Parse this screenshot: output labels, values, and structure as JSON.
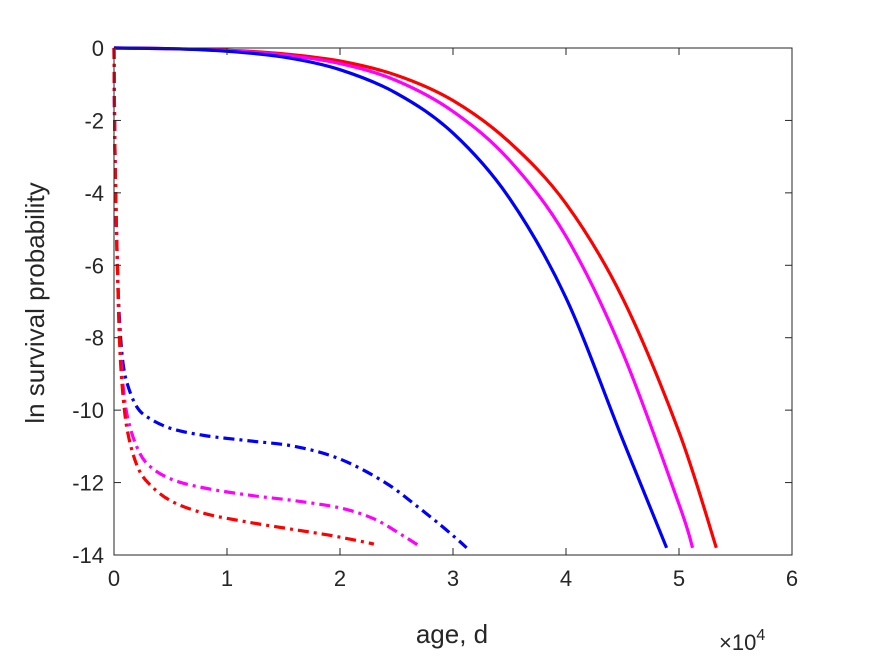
{
  "chart_data": {
    "type": "line",
    "title": "",
    "xlabel": "age, d",
    "ylabel": "ln survival probability",
    "x_exponent_label": {
      "base": "×10",
      "power": "4"
    },
    "xlim": [
      0,
      60000
    ],
    "ylim": [
      -14,
      0
    ],
    "x_ticks": [
      0,
      10000,
      20000,
      30000,
      40000,
      50000,
      60000
    ],
    "x_tick_labels": [
      "0",
      "1",
      "2",
      "3",
      "4",
      "5",
      "6"
    ],
    "y_ticks": [
      0,
      -2,
      -4,
      -6,
      -8,
      -10,
      -12,
      -14
    ],
    "y_tick_labels": [
      "0",
      "-2",
      "-4",
      "-6",
      "-8",
      "-10",
      "-12",
      "-14"
    ],
    "grid": false,
    "legend": "none",
    "series": [
      {
        "color": "#ff0000",
        "style": "solid",
        "x": [
          0,
          5000,
          10000,
          15000,
          20000,
          25000,
          30000,
          35000,
          40000,
          45000,
          50000,
          53300
        ],
        "y": [
          0,
          -0.02,
          -0.06,
          -0.16,
          -0.36,
          -0.75,
          -1.45,
          -2.6,
          -4.3,
          -6.9,
          -10.6,
          -13.8
        ]
      },
      {
        "color": "#ff00ff",
        "style": "solid",
        "x": [
          0,
          5000,
          10000,
          15000,
          20000,
          25000,
          30000,
          35000,
          40000,
          45000,
          50000,
          51200
        ],
        "y": [
          0,
          -0.02,
          -0.07,
          -0.19,
          -0.43,
          -0.9,
          -1.75,
          -3.1,
          -5.2,
          -8.4,
          -12.6,
          -13.8
        ]
      },
      {
        "color": "#0000ff",
        "style": "solid",
        "x": [
          0,
          5000,
          10000,
          15000,
          20000,
          25000,
          30000,
          35000,
          40000,
          45000,
          48900
        ],
        "y": [
          0,
          -0.02,
          -0.09,
          -0.25,
          -0.6,
          -1.25,
          -2.35,
          -4.15,
          -6.9,
          -10.8,
          -13.8
        ]
      },
      {
        "color": "#0000ff",
        "style": "dashdot",
        "x": [
          0,
          50,
          150,
          300,
          500,
          800,
          1200,
          2000,
          3000,
          5000,
          8000,
          12000,
          16000,
          20000,
          24000,
          27000,
          29000,
          30500,
          31200
        ],
        "y": [
          0,
          -2,
          -4,
          -6,
          -7.6,
          -8.7,
          -9.3,
          -9.9,
          -10.2,
          -10.5,
          -10.7,
          -10.85,
          -11.0,
          -11.35,
          -12.0,
          -12.7,
          -13.2,
          -13.6,
          -13.8
        ]
      },
      {
        "color": "#ff00ff",
        "style": "dashdot",
        "x": [
          0,
          50,
          150,
          300,
          500,
          800,
          1200,
          2000,
          3000,
          5000,
          8000,
          12000,
          16000,
          20000,
          23000,
          25500,
          27000
        ],
        "y": [
          0,
          -2,
          -4,
          -6,
          -8,
          -9.3,
          -10.2,
          -11.0,
          -11.5,
          -11.9,
          -12.15,
          -12.35,
          -12.5,
          -12.7,
          -13.0,
          -13.45,
          -13.75
        ]
      },
      {
        "color": "#ff0000",
        "style": "dashdot",
        "x": [
          0,
          50,
          150,
          300,
          500,
          800,
          1200,
          2000,
          3000,
          5000,
          8000,
          12000,
          16000,
          19000,
          21500,
          23000
        ],
        "y": [
          0,
          -2,
          -4,
          -6,
          -8.2,
          -9.6,
          -10.6,
          -11.5,
          -12.0,
          -12.5,
          -12.85,
          -13.1,
          -13.3,
          -13.45,
          -13.6,
          -13.7
        ]
      }
    ]
  }
}
